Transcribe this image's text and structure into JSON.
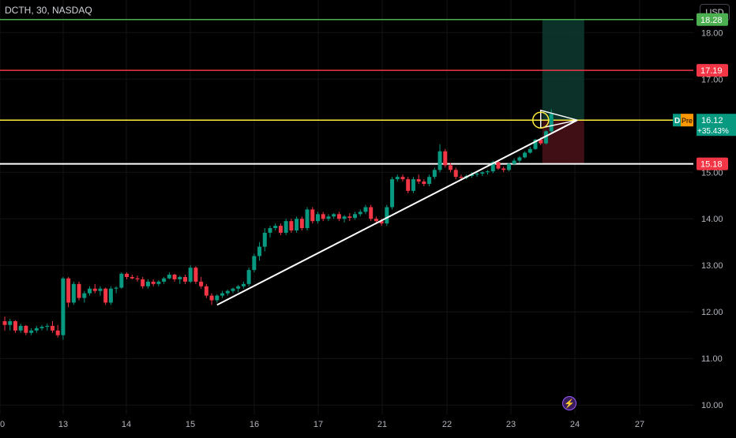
{
  "header": {
    "symbol_title": "DCTH, 30, NASDAQ",
    "currency": "USD"
  },
  "price_axis": {
    "ticks": [
      {
        "label": "18.00",
        "value": 18.0
      },
      {
        "label": "17.00",
        "value": 17.0
      },
      {
        "label": "15.00",
        "value": 15.0
      },
      {
        "label": "14.00",
        "value": 14.0
      },
      {
        "label": "13.00",
        "value": 13.0
      },
      {
        "label": "12.00",
        "value": 12.0
      },
      {
        "label": "11.00",
        "value": 11.0
      },
      {
        "label": "10.00",
        "value": 10.0
      }
    ],
    "badges": {
      "target": {
        "label": "18.28",
        "value": 18.28,
        "color": "#4caf50"
      },
      "resistance": {
        "label": "17.19",
        "value": 17.19,
        "color": "#f23645"
      },
      "last": {
        "label": "16.12",
        "value": 16.12,
        "color": "#089981"
      },
      "last_change": "+35.43%",
      "pre_tag": "Pre",
      "d_tag": "D",
      "stop": {
        "label": "15.18",
        "value": 15.18,
        "color": "#f23645"
      }
    }
  },
  "time_axis": {
    "labels": [
      "0",
      "13",
      "14",
      "15",
      "16",
      "17",
      "21",
      "22",
      "23",
      "24",
      "27"
    ]
  },
  "colors": {
    "up": "#089981",
    "down": "#f23645",
    "green_line": "#4caf50",
    "red_line": "#f23645",
    "yellow_line": "#ffeb3b",
    "white_line": "#ffffff",
    "grid": "#141414",
    "target_zone": "#0d3a30",
    "stop_zone": "#4a1219"
  },
  "drawings": {
    "horizontal_lines": [
      18.28,
      17.19,
      16.12,
      15.18
    ],
    "trendline": {
      "from": {
        "bar": 40,
        "price": 12.15
      },
      "to": {
        "bar": 107,
        "price": 16.12
      }
    },
    "triangle": [
      {
        "bar": 101,
        "price": 16.33
      },
      {
        "bar": 107,
        "price": 16.12
      },
      {
        "bar": 101,
        "price": 15.95
      }
    ],
    "circle_highlight": {
      "bar": 101,
      "price": 16.12
    },
    "position": {
      "entry": 16.12,
      "target": 18.28,
      "stop": 15.18,
      "bar_from": 101,
      "bar_to": 108
    }
  },
  "chart_data": {
    "type": "candlestick",
    "price_range": [
      9.8,
      18.7
    ],
    "bars": [
      {
        "o": 11.8,
        "h": 11.9,
        "l": 11.6,
        "c": 11.72
      },
      {
        "o": 11.72,
        "h": 11.85,
        "l": 11.6,
        "c": 11.8
      },
      {
        "o": 11.8,
        "h": 11.82,
        "l": 11.55,
        "c": 11.6
      },
      {
        "o": 11.6,
        "h": 11.75,
        "l": 11.55,
        "c": 11.7
      },
      {
        "o": 11.7,
        "h": 11.72,
        "l": 11.5,
        "c": 11.55
      },
      {
        "o": 11.55,
        "h": 11.65,
        "l": 11.5,
        "c": 11.6
      },
      {
        "o": 11.6,
        "h": 11.7,
        "l": 11.55,
        "c": 11.65
      },
      {
        "o": 11.65,
        "h": 11.72,
        "l": 11.6,
        "c": 11.68
      },
      {
        "o": 11.68,
        "h": 11.75,
        "l": 11.6,
        "c": 11.7
      },
      {
        "o": 11.7,
        "h": 11.8,
        "l": 11.55,
        "c": 11.6
      },
      {
        "o": 11.6,
        "h": 11.72,
        "l": 11.45,
        "c": 11.5
      },
      {
        "o": 11.5,
        "h": 12.75,
        "l": 11.4,
        "c": 12.72
      },
      {
        "o": 12.72,
        "h": 12.75,
        "l": 12.1,
        "c": 12.2
      },
      {
        "o": 12.2,
        "h": 12.65,
        "l": 12.15,
        "c": 12.6
      },
      {
        "o": 12.6,
        "h": 12.65,
        "l": 12.25,
        "c": 12.3
      },
      {
        "o": 12.3,
        "h": 12.45,
        "l": 12.2,
        "c": 12.4
      },
      {
        "o": 12.4,
        "h": 12.55,
        "l": 12.35,
        "c": 12.5
      },
      {
        "o": 12.5,
        "h": 12.6,
        "l": 12.4,
        "c": 12.45
      },
      {
        "o": 12.45,
        "h": 12.55,
        "l": 12.35,
        "c": 12.5
      },
      {
        "o": 12.5,
        "h": 12.52,
        "l": 12.15,
        "c": 12.2
      },
      {
        "o": 12.2,
        "h": 12.55,
        "l": 12.15,
        "c": 12.5
      },
      {
        "o": 12.5,
        "h": 12.55,
        "l": 12.4,
        "c": 12.52
      },
      {
        "o": 12.52,
        "h": 12.85,
        "l": 12.5,
        "c": 12.82
      },
      {
        "o": 12.82,
        "h": 12.85,
        "l": 12.7,
        "c": 12.75
      },
      {
        "o": 12.75,
        "h": 12.8,
        "l": 12.7,
        "c": 12.72
      },
      {
        "o": 12.72,
        "h": 12.78,
        "l": 12.65,
        "c": 12.7
      },
      {
        "o": 12.7,
        "h": 12.75,
        "l": 12.5,
        "c": 12.55
      },
      {
        "o": 12.55,
        "h": 12.7,
        "l": 12.5,
        "c": 12.65
      },
      {
        "o": 12.65,
        "h": 12.7,
        "l": 12.55,
        "c": 12.6
      },
      {
        "o": 12.6,
        "h": 12.68,
        "l": 12.55,
        "c": 12.65
      },
      {
        "o": 12.65,
        "h": 12.75,
        "l": 12.6,
        "c": 12.72
      },
      {
        "o": 12.72,
        "h": 12.85,
        "l": 12.7,
        "c": 12.8
      },
      {
        "o": 12.8,
        "h": 12.82,
        "l": 12.65,
        "c": 12.7
      },
      {
        "o": 12.7,
        "h": 12.78,
        "l": 12.6,
        "c": 12.75
      },
      {
        "o": 12.75,
        "h": 12.8,
        "l": 12.6,
        "c": 12.65
      },
      {
        "o": 12.65,
        "h": 13.0,
        "l": 12.62,
        "c": 12.95
      },
      {
        "o": 12.95,
        "h": 12.98,
        "l": 12.6,
        "c": 12.65
      },
      {
        "o": 12.65,
        "h": 12.75,
        "l": 12.5,
        "c": 12.55
      },
      {
        "o": 12.55,
        "h": 12.6,
        "l": 12.3,
        "c": 12.35
      },
      {
        "o": 12.35,
        "h": 12.4,
        "l": 12.15,
        "c": 12.25
      },
      {
        "o": 12.25,
        "h": 12.38,
        "l": 12.2,
        "c": 12.35
      },
      {
        "o": 12.35,
        "h": 12.45,
        "l": 12.3,
        "c": 12.4
      },
      {
        "o": 12.4,
        "h": 12.48,
        "l": 12.35,
        "c": 12.45
      },
      {
        "o": 12.45,
        "h": 12.52,
        "l": 12.4,
        "c": 12.5
      },
      {
        "o": 12.5,
        "h": 12.58,
        "l": 12.42,
        "c": 12.55
      },
      {
        "o": 12.55,
        "h": 12.65,
        "l": 12.5,
        "c": 12.6
      },
      {
        "o": 12.6,
        "h": 12.95,
        "l": 12.55,
        "c": 12.9
      },
      {
        "o": 12.9,
        "h": 13.25,
        "l": 12.85,
        "c": 13.2
      },
      {
        "o": 13.2,
        "h": 13.5,
        "l": 13.1,
        "c": 13.4
      },
      {
        "o": 13.4,
        "h": 13.8,
        "l": 13.3,
        "c": 13.7
      },
      {
        "o": 13.7,
        "h": 13.85,
        "l": 13.6,
        "c": 13.8
      },
      {
        "o": 13.8,
        "h": 13.9,
        "l": 13.75,
        "c": 13.85
      },
      {
        "o": 13.85,
        "h": 13.9,
        "l": 13.65,
        "c": 13.7
      },
      {
        "o": 13.7,
        "h": 14.0,
        "l": 13.65,
        "c": 13.95
      },
      {
        "o": 13.95,
        "h": 14.0,
        "l": 13.7,
        "c": 13.75
      },
      {
        "o": 13.75,
        "h": 14.05,
        "l": 13.7,
        "c": 14.0
      },
      {
        "o": 14.0,
        "h": 14.05,
        "l": 13.75,
        "c": 13.8
      },
      {
        "o": 13.8,
        "h": 14.25,
        "l": 13.75,
        "c": 14.2
      },
      {
        "o": 14.2,
        "h": 14.25,
        "l": 13.9,
        "c": 13.95
      },
      {
        "o": 13.95,
        "h": 14.15,
        "l": 13.9,
        "c": 14.1
      },
      {
        "o": 14.1,
        "h": 14.15,
        "l": 13.95,
        "c": 14.0
      },
      {
        "o": 14.0,
        "h": 14.1,
        "l": 13.95,
        "c": 14.05
      },
      {
        "o": 14.05,
        "h": 14.12,
        "l": 14.0,
        "c": 14.1
      },
      {
        "o": 14.1,
        "h": 14.15,
        "l": 13.95,
        "c": 14.0
      },
      {
        "o": 14.0,
        "h": 14.08,
        "l": 13.92,
        "c": 14.05
      },
      {
        "o": 14.05,
        "h": 14.12,
        "l": 13.95,
        "c": 14.02
      },
      {
        "o": 14.02,
        "h": 14.15,
        "l": 13.98,
        "c": 14.1
      },
      {
        "o": 14.1,
        "h": 14.2,
        "l": 14.05,
        "c": 14.15
      },
      {
        "o": 14.15,
        "h": 14.3,
        "l": 14.1,
        "c": 14.25
      },
      {
        "o": 14.25,
        "h": 14.3,
        "l": 13.95,
        "c": 14.0
      },
      {
        "o": 14.0,
        "h": 14.05,
        "l": 13.9,
        "c": 13.95
      },
      {
        "o": 13.95,
        "h": 14.0,
        "l": 13.85,
        "c": 13.9
      },
      {
        "o": 13.9,
        "h": 14.3,
        "l": 13.85,
        "c": 14.25
      },
      {
        "o": 14.25,
        "h": 14.9,
        "l": 14.2,
        "c": 14.85
      },
      {
        "o": 14.85,
        "h": 14.95,
        "l": 14.8,
        "c": 14.9
      },
      {
        "o": 14.9,
        "h": 14.95,
        "l": 14.8,
        "c": 14.85
      },
      {
        "o": 14.85,
        "h": 14.9,
        "l": 14.55,
        "c": 14.6
      },
      {
        "o": 14.6,
        "h": 14.9,
        "l": 14.55,
        "c": 14.85
      },
      {
        "o": 14.85,
        "h": 14.95,
        "l": 14.75,
        "c": 14.8
      },
      {
        "o": 14.8,
        "h": 14.85,
        "l": 14.7,
        "c": 14.75
      },
      {
        "o": 14.75,
        "h": 14.95,
        "l": 14.7,
        "c": 14.9
      },
      {
        "o": 14.9,
        "h": 15.1,
        "l": 14.85,
        "c": 15.05
      },
      {
        "o": 15.05,
        "h": 15.6,
        "l": 15.0,
        "c": 15.45
      },
      {
        "o": 15.45,
        "h": 15.5,
        "l": 15.1,
        "c": 15.15
      },
      {
        "o": 15.15,
        "h": 15.2,
        "l": 15.0,
        "c": 15.05
      },
      {
        "o": 15.05,
        "h": 15.1,
        "l": 14.85,
        "c": 14.9
      },
      {
        "o": 14.9,
        "h": 14.95,
        "l": 14.82,
        "c": 14.88
      },
      {
        "o": 14.88,
        "h": 14.95,
        "l": 14.85,
        "c": 14.92
      },
      {
        "o": 14.92,
        "h": 15.0,
        "l": 14.88,
        "c": 14.95
      },
      {
        "o": 14.95,
        "h": 15.0,
        "l": 14.9,
        "c": 14.97
      },
      {
        "o": 14.97,
        "h": 15.02,
        "l": 14.92,
        "c": 15.0
      },
      {
        "o": 15.0,
        "h": 15.05,
        "l": 14.95,
        "c": 15.02
      },
      {
        "o": 15.02,
        "h": 15.25,
        "l": 14.98,
        "c": 15.22
      },
      {
        "o": 15.22,
        "h": 15.25,
        "l": 15.05,
        "c": 15.08
      },
      {
        "o": 15.08,
        "h": 15.12,
        "l": 15.0,
        "c": 15.05
      },
      {
        "o": 15.05,
        "h": 15.2,
        "l": 15.02,
        "c": 15.18
      },
      {
        "o": 15.18,
        "h": 15.3,
        "l": 15.15,
        "c": 15.25
      },
      {
        "o": 15.25,
        "h": 15.35,
        "l": 15.2,
        "c": 15.32
      },
      {
        "o": 15.32,
        "h": 15.45,
        "l": 15.3,
        "c": 15.42
      },
      {
        "o": 15.42,
        "h": 15.55,
        "l": 15.4,
        "c": 15.5
      },
      {
        "o": 15.5,
        "h": 15.72,
        "l": 15.48,
        "c": 15.7
      },
      {
        "o": 15.7,
        "h": 15.75,
        "l": 15.58,
        "c": 15.62
      },
      {
        "o": 15.62,
        "h": 15.9,
        "l": 15.6,
        "c": 15.88
      },
      {
        "o": 15.88,
        "h": 16.35,
        "l": 15.85,
        "c": 16.25
      }
    ]
  }
}
